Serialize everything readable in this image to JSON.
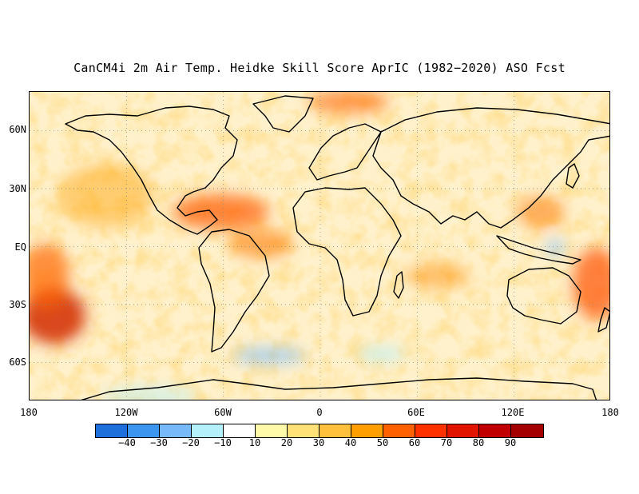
{
  "title": "CanCM4i 2m Air Temp. Heidke Skill Score AprIC (1982−2020) ASO Fcst",
  "map": {
    "projection": "equirectangular",
    "lat_range": [
      -80,
      80
    ],
    "lon_range": [
      -180,
      180
    ],
    "lat_ticks": [
      "60N",
      "30N",
      "EQ",
      "30S",
      "60S"
    ],
    "lat_tick_values": [
      60,
      30,
      0,
      -30,
      -60
    ],
    "lon_ticks": [
      "180",
      "120W",
      "60W",
      "0",
      "60E",
      "120E",
      "180"
    ],
    "lon_tick_values": [
      -180,
      -120,
      -60,
      0,
      60,
      120,
      180
    ],
    "gridlines": "dotted"
  },
  "colorbar": {
    "colors": [
      "#1e6edc",
      "#3c96f0",
      "#78b9fa",
      "#b4f0fa",
      "#ffffff",
      "#fffaaa",
      "#ffe178",
      "#ffc03c",
      "#ffa000",
      "#ff6000",
      "#ff3200",
      "#e11400",
      "#c00000",
      "#a50000"
    ],
    "labels": [
      "−40",
      "−30",
      "−20",
      "−10",
      "10",
      "20",
      "30",
      "40",
      "50",
      "60",
      "70",
      "80",
      "90"
    ]
  },
  "colors": {
    "land_outline": "#000000",
    "grid": "#888888"
  }
}
